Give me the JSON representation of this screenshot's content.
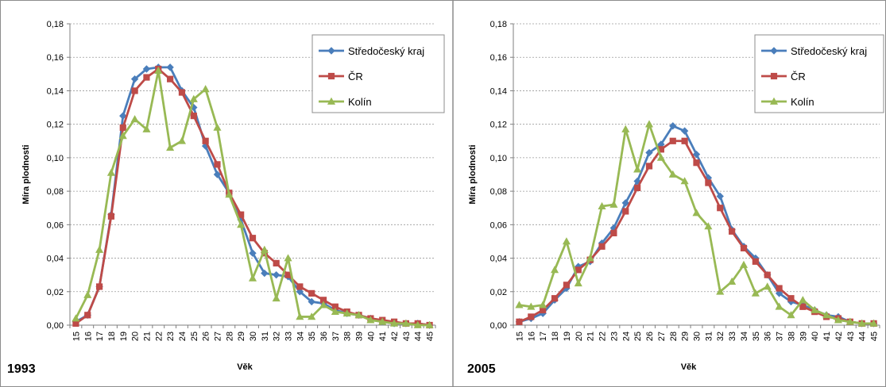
{
  "chart_data": [
    {
      "type": "line",
      "panel_label": "1993",
      "xlabel": "Věk",
      "ylabel": "Míra plodnosti",
      "ylim": [
        0,
        0.18
      ],
      "yticks": [
        "0,00",
        "0,02",
        "0,04",
        "0,06",
        "0,08",
        "0,10",
        "0,12",
        "0,14",
        "0,16",
        "0,18"
      ],
      "grid": true,
      "legend": "top-right",
      "x": [
        15,
        16,
        17,
        18,
        19,
        20,
        21,
        22,
        23,
        24,
        25,
        26,
        27,
        28,
        29,
        30,
        31,
        32,
        33,
        34,
        35,
        36,
        37,
        38,
        39,
        40,
        41,
        42,
        43,
        44,
        45
      ],
      "series": [
        {
          "name": "Středočeský kraj",
          "color": "#4a7ebb",
          "marker": "diamond",
          "values": [
            0.002,
            0.006,
            0.023,
            0.066,
            0.125,
            0.147,
            0.153,
            0.154,
            0.154,
            0.14,
            0.13,
            0.107,
            0.09,
            0.079,
            0.063,
            0.043,
            0.031,
            0.03,
            0.029,
            0.02,
            0.014,
            0.013,
            0.009,
            0.007,
            0.006,
            0.004,
            0.002,
            0.001,
            0.001,
            0.001,
            0.0
          ]
        },
        {
          "name": "ČR",
          "color": "#be4b48",
          "marker": "square",
          "values": [
            0.001,
            0.006,
            0.023,
            0.065,
            0.118,
            0.14,
            0.148,
            0.153,
            0.147,
            0.139,
            0.125,
            0.11,
            0.096,
            0.079,
            0.066,
            0.052,
            0.043,
            0.037,
            0.03,
            0.023,
            0.019,
            0.015,
            0.011,
            0.008,
            0.006,
            0.004,
            0.003,
            0.002,
            0.001,
            0.001,
            0.0
          ]
        },
        {
          "name": "Kolín",
          "color": "#98b954",
          "marker": "triangle",
          "values": [
            0.004,
            0.018,
            0.045,
            0.091,
            0.113,
            0.123,
            0.117,
            0.152,
            0.106,
            0.11,
            0.135,
            0.141,
            0.118,
            0.078,
            0.06,
            0.028,
            0.045,
            0.016,
            0.04,
            0.005,
            0.005,
            0.012,
            0.008,
            0.007,
            0.006,
            0.003,
            0.002,
            0.001,
            0.001,
            0.0,
            0.0
          ]
        }
      ]
    },
    {
      "type": "line",
      "panel_label": "2005",
      "xlabel": "Věk",
      "ylabel": "Míra plodnosti",
      "ylim": [
        0,
        0.18
      ],
      "yticks": [
        "0,00",
        "0,02",
        "0,04",
        "0,06",
        "0,08",
        "0,10",
        "0,12",
        "0,14",
        "0,16",
        "0,18"
      ],
      "grid": true,
      "legend": "top-right",
      "x": [
        15,
        16,
        17,
        18,
        19,
        20,
        21,
        22,
        23,
        24,
        25,
        26,
        27,
        28,
        29,
        30,
        31,
        32,
        33,
        34,
        35,
        36,
        37,
        38,
        39,
        40,
        41,
        42,
        43,
        44,
        45
      ],
      "series": [
        {
          "name": "Středočeský kraj",
          "color": "#4a7ebb",
          "marker": "diamond",
          "values": [
            0.002,
            0.004,
            0.007,
            0.015,
            0.022,
            0.035,
            0.038,
            0.049,
            0.058,
            0.073,
            0.086,
            0.103,
            0.108,
            0.119,
            0.116,
            0.102,
            0.088,
            0.077,
            0.057,
            0.047,
            0.04,
            0.03,
            0.019,
            0.014,
            0.012,
            0.009,
            0.006,
            0.005,
            0.002,
            0.001,
            0.001
          ]
        },
        {
          "name": "ČR",
          "color": "#be4b48",
          "marker": "square",
          "values": [
            0.002,
            0.005,
            0.009,
            0.016,
            0.024,
            0.033,
            0.039,
            0.047,
            0.055,
            0.068,
            0.082,
            0.095,
            0.105,
            0.11,
            0.11,
            0.097,
            0.085,
            0.07,
            0.056,
            0.046,
            0.038,
            0.03,
            0.022,
            0.016,
            0.011,
            0.008,
            0.005,
            0.004,
            0.002,
            0.001,
            0.001
          ]
        },
        {
          "name": "Kolín",
          "color": "#98b954",
          "marker": "triangle",
          "values": [
            0.012,
            0.011,
            0.012,
            0.033,
            0.05,
            0.025,
            0.04,
            0.071,
            0.072,
            0.117,
            0.093,
            0.12,
            0.1,
            0.09,
            0.086,
            0.067,
            0.059,
            0.02,
            0.026,
            0.036,
            0.019,
            0.023,
            0.011,
            0.006,
            0.015,
            0.009,
            0.006,
            0.003,
            0.002,
            0.001,
            0.001
          ]
        }
      ]
    }
  ]
}
